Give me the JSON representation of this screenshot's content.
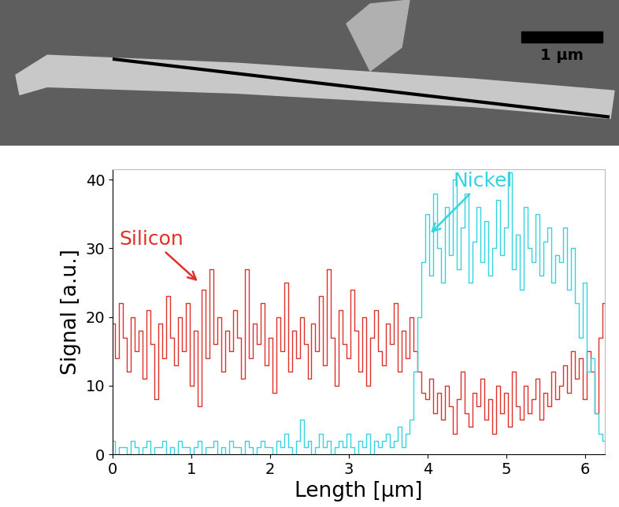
{
  "image": {
    "scale_bar_label": "1 µm"
  },
  "chart_data": {
    "type": "line",
    "x_label": "Length [µm]",
    "y_label": "Signal [a.u.]",
    "x": [
      0.0,
      0.05,
      0.1,
      0.15,
      0.2,
      0.25,
      0.3,
      0.35,
      0.4,
      0.45,
      0.5,
      0.55,
      0.6,
      0.65,
      0.7,
      0.75,
      0.8,
      0.85,
      0.9,
      0.95,
      1.0,
      1.05,
      1.1,
      1.15,
      1.2,
      1.25,
      1.3,
      1.35,
      1.4,
      1.45,
      1.5,
      1.55,
      1.6,
      1.65,
      1.7,
      1.75,
      1.8,
      1.85,
      1.9,
      1.95,
      2.0,
      2.05,
      2.1,
      2.15,
      2.2,
      2.25,
      2.3,
      2.35,
      2.4,
      2.45,
      2.5,
      2.55,
      2.6,
      2.65,
      2.7,
      2.75,
      2.8,
      2.85,
      2.9,
      2.95,
      3.0,
      3.05,
      3.1,
      3.15,
      3.2,
      3.25,
      3.3,
      3.35,
      3.4,
      3.45,
      3.5,
      3.55,
      3.6,
      3.65,
      3.7,
      3.75,
      3.8,
      3.85,
      3.9,
      3.95,
      4.0,
      4.05,
      4.1,
      4.15,
      4.2,
      4.25,
      4.3,
      4.35,
      4.4,
      4.45,
      4.5,
      4.55,
      4.6,
      4.65,
      4.7,
      4.75,
      4.8,
      4.85,
      4.9,
      4.95,
      5.0,
      5.05,
      5.1,
      5.15,
      5.2,
      5.25,
      5.3,
      5.35,
      5.4,
      5.45,
      5.5,
      5.55,
      5.6,
      5.65,
      5.7,
      5.75,
      5.8,
      5.85,
      5.9,
      5.95,
      6.0,
      6.05,
      6.1,
      6.15,
      6.2,
      6.25
    ],
    "series": [
      {
        "name": "Silicon",
        "color": "#e0302a",
        "values": [
          19,
          14,
          22,
          17,
          12,
          20,
          15,
          18,
          11,
          21,
          16,
          8,
          19,
          14,
          23,
          17,
          13,
          20,
          15,
          22,
          10,
          18,
          7,
          24,
          14,
          27,
          16,
          20,
          12,
          18,
          15,
          21,
          17,
          11,
          27,
          14,
          19,
          16,
          22,
          13,
          17,
          9,
          20,
          15,
          25,
          12,
          18,
          14,
          20,
          16,
          11,
          19,
          15,
          23,
          13,
          27,
          17,
          10,
          21,
          16,
          14,
          24,
          18,
          12,
          20,
          10,
          17,
          21,
          15,
          13,
          19,
          16,
          22,
          12,
          18,
          14,
          20,
          15,
          12,
          9,
          8,
          11,
          6,
          9,
          5,
          10,
          7,
          3,
          8,
          12,
          6,
          4,
          9,
          7,
          11,
          5,
          8,
          3,
          10,
          6,
          9,
          4,
          12,
          7,
          5,
          10,
          6,
          8,
          11,
          5,
          9,
          7,
          12,
          8,
          10,
          13,
          9,
          15,
          11,
          14,
          8,
          15,
          12,
          6,
          17,
          22
        ]
      },
      {
        "name": "Nickel",
        "color": "#33d4e0",
        "values": [
          2,
          0,
          1,
          1,
          0,
          2,
          1,
          0,
          1,
          2,
          0,
          1,
          1,
          2,
          0,
          1,
          0,
          2,
          1,
          1,
          0,
          1,
          2,
          0,
          1,
          1,
          2,
          0,
          1,
          0,
          2,
          1,
          1,
          0,
          2,
          1,
          0,
          1,
          2,
          1,
          1,
          0,
          2,
          1,
          3,
          1,
          0,
          2,
          5,
          1,
          2,
          0,
          1,
          3,
          1,
          2,
          0,
          1,
          2,
          1,
          3,
          1,
          0,
          2,
          1,
          3,
          0,
          2,
          1,
          2,
          3,
          1,
          2,
          4,
          1,
          3,
          5,
          12,
          20,
          28,
          35,
          26,
          38,
          30,
          25,
          36,
          29,
          40,
          27,
          33,
          38,
          25,
          31,
          36,
          28,
          34,
          26,
          30,
          37,
          29,
          33,
          41,
          27,
          32,
          24,
          36,
          30,
          28,
          35,
          26,
          31,
          33,
          25,
          29,
          28,
          33,
          24,
          30,
          22,
          17,
          25,
          12,
          14,
          6,
          3,
          2
        ]
      }
    ],
    "xlim": [
      0,
      6.25
    ],
    "ylim": [
      0,
      41.5
    ],
    "xticks": [
      0,
      1,
      2,
      3,
      4,
      5,
      6
    ],
    "yticks": [
      0,
      10,
      20,
      30,
      40
    ],
    "line_style": "steps"
  }
}
